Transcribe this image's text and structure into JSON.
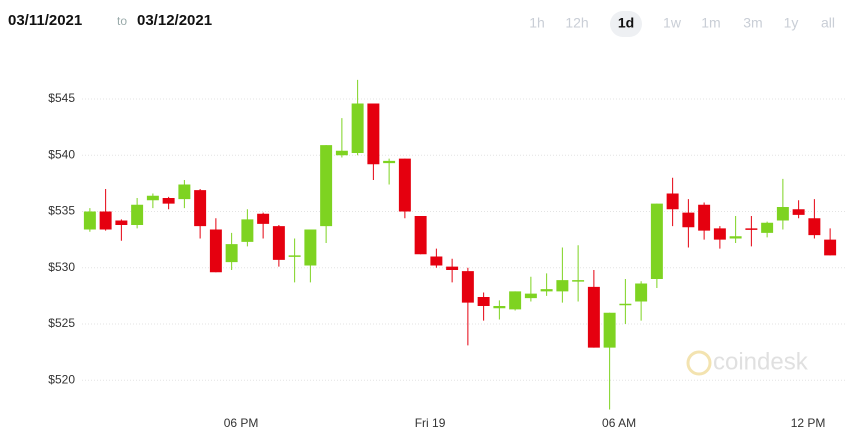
{
  "header": {
    "from": "03/11/2021",
    "to_word": "to",
    "to": "03/12/2021"
  },
  "ranges": [
    "1h",
    "12h",
    "1d",
    "1w",
    "1m",
    "3m",
    "1y",
    "all"
  ],
  "selected_range": "1d",
  "watermark": "coindesk",
  "chart_data": {
    "type": "candlestick",
    "categories": [
      null,
      null,
      null,
      null,
      null,
      null,
      null,
      null,
      null,
      null,
      "06 PM",
      null,
      null,
      null,
      null,
      null,
      null,
      null,
      null,
      null,
      null,
      null,
      "Fri 19",
      null,
      null,
      null,
      null,
      null,
      null,
      null,
      null,
      null,
      null,
      null,
      "06 AM",
      null,
      null,
      null,
      null,
      null,
      null,
      null,
      null,
      null,
      null,
      null,
      "12 PM",
      null
    ],
    "open": [
      533.4,
      535.0,
      534.2,
      533.8,
      536.0,
      536.2,
      536.1,
      536.9,
      533.4,
      530.5,
      532.3,
      534.8,
      533.7,
      531.0,
      530.2,
      533.7,
      540.0,
      540.2,
      544.6,
      539.3,
      539.7,
      534.6,
      531.0,
      530.1,
      529.7,
      527.4,
      526.4,
      526.3,
      527.3,
      527.9,
      527.9,
      528.8,
      528.3,
      522.9,
      526.7,
      527.0,
      529.0,
      536.6,
      534.9,
      535.6,
      533.5,
      532.6,
      533.5,
      533.1,
      534.2,
      535.2,
      534.4,
      532.5
    ],
    "high": [
      535.3,
      537.0,
      534.3,
      536.2,
      536.6,
      536.3,
      537.8,
      537.0,
      534.4,
      533.1,
      535.2,
      534.9,
      533.8,
      532.6,
      533.4,
      540.9,
      543.3,
      546.7,
      544.6,
      539.7,
      539.7,
      534.6,
      531.7,
      530.8,
      530.0,
      527.8,
      527.1,
      527.9,
      529.2,
      529.5,
      531.8,
      532.0,
      529.8,
      526.0,
      529.0,
      528.8,
      535.7,
      538.0,
      536.1,
      535.8,
      533.7,
      534.6,
      534.6,
      534.1,
      537.9,
      536.0,
      536.1,
      533.5
    ],
    "low": [
      533.2,
      533.3,
      532.4,
      533.5,
      535.3,
      535.2,
      535.3,
      532.6,
      529.6,
      529.8,
      531.9,
      532.6,
      530.1,
      528.7,
      528.7,
      532.2,
      539.8,
      540.0,
      537.8,
      537.4,
      534.4,
      531.2,
      530.0,
      528.7,
      523.1,
      525.3,
      525.4,
      526.2,
      527.0,
      527.5,
      526.9,
      527.0,
      522.9,
      517.4,
      525.0,
      525.3,
      528.2,
      533.7,
      531.8,
      532.5,
      531.7,
      532.2,
      531.9,
      532.7,
      533.4,
      534.4,
      532.6,
      531.1
    ],
    "close": [
      535.0,
      533.4,
      533.8,
      535.6,
      536.4,
      535.7,
      537.4,
      533.7,
      529.6,
      532.1,
      534.3,
      533.9,
      530.7,
      531.1,
      533.4,
      540.9,
      540.4,
      544.6,
      539.2,
      539.5,
      535.0,
      531.2,
      530.2,
      529.8,
      526.9,
      526.6,
      526.6,
      527.9,
      527.7,
      528.1,
      528.9,
      528.9,
      522.9,
      526.0,
      526.8,
      528.6,
      535.7,
      535.2,
      533.6,
      533.3,
      532.5,
      532.8,
      533.4,
      534.0,
      535.4,
      534.7,
      532.9,
      531.1
    ],
    "up_color": "#7ed321",
    "down_color": "#e5000f",
    "ylim": [
      517,
      547
    ],
    "yticks": [
      {
        "value": 520,
        "label": "$520"
      },
      {
        "value": 525,
        "label": "$525"
      },
      {
        "value": 530,
        "label": "$530"
      },
      {
        "value": 535,
        "label": "$535"
      },
      {
        "value": 540,
        "label": "$540"
      },
      {
        "value": 545,
        "label": "$545"
      }
    ],
    "grid": true
  }
}
